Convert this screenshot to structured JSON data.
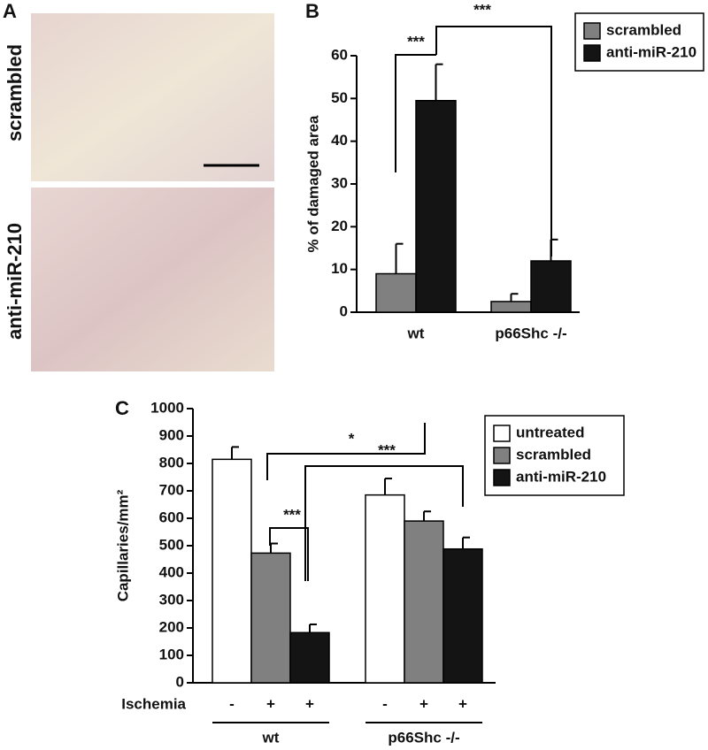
{
  "panel_a": {
    "letter": "A",
    "labels": [
      "scrambled",
      "anti-miR-210"
    ]
  },
  "chart_data": [
    {
      "type": "bar",
      "panel": "B",
      "y_label": "% of damaged area",
      "categories": [
        "wt",
        "p66Shc -/-"
      ],
      "series": [
        {
          "name": "scrambled",
          "color": "#808080",
          "values": [
            9,
            2.5
          ],
          "errors": [
            7,
            1.8
          ]
        },
        {
          "name": "anti-miR-210",
          "color": "#141414",
          "values": [
            49.5,
            12
          ],
          "errors": [
            8.5,
            5
          ]
        }
      ],
      "ylim": [
        0,
        60
      ],
      "yticks": [
        0,
        10,
        20,
        30,
        40,
        50,
        60
      ],
      "annotations": [
        "***",
        "***"
      ]
    },
    {
      "type": "bar",
      "panel": "C",
      "y_label": "Capillaries/mm²",
      "categories": [
        "wt",
        "p66Shc -/-"
      ],
      "series": [
        {
          "name": "untreated",
          "color": "#ffffff",
          "values": [
            815,
            685
          ],
          "errors": [
            45,
            60
          ]
        },
        {
          "name": "scrambled",
          "color": "#808080",
          "values": [
            473,
            590
          ],
          "errors": [
            35,
            35
          ]
        },
        {
          "name": "anti-miR-210",
          "color": "#141414",
          "values": [
            183,
            488
          ],
          "errors": [
            30,
            42
          ]
        }
      ],
      "ylim": [
        0,
        1000
      ],
      "yticks": [
        0,
        100,
        200,
        300,
        400,
        500,
        600,
        700,
        800,
        900,
        1000
      ],
      "row_label": "Ischemia",
      "row_marks": [
        [
          "-",
          "+",
          "+"
        ],
        [
          "-",
          "+",
          "+"
        ]
      ],
      "annotations": [
        "*",
        "***",
        "***"
      ]
    }
  ]
}
